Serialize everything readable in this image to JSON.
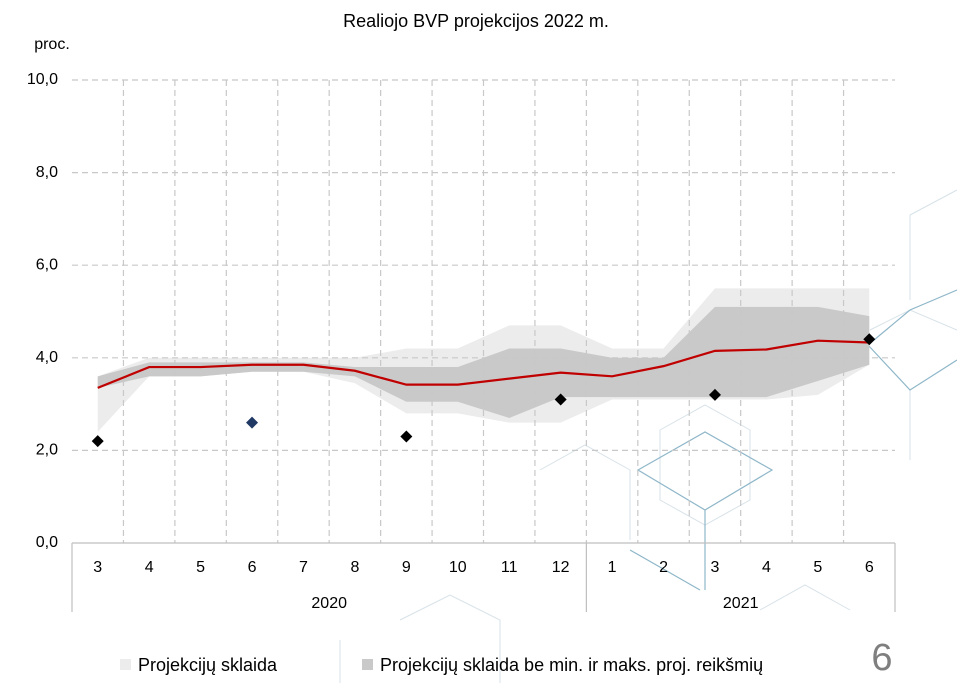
{
  "chart_data": {
    "type": "band-line",
    "title": "Realiojo BVP projekcijos 2022 m.",
    "y_label": "proc.",
    "page_number": "6",
    "categories": [
      "3",
      "4",
      "5",
      "6",
      "7",
      "8",
      "9",
      "10",
      "11",
      "12",
      "1",
      "2",
      "3",
      "4",
      "5",
      "6"
    ],
    "groups": [
      {
        "label": "2020",
        "count": 10
      },
      {
        "label": "2021",
        "count": 6
      }
    ],
    "ylim": [
      0,
      10
    ],
    "yticks": [
      {
        "value": 0,
        "label": "0,0"
      },
      {
        "value": 2,
        "label": "2,0"
      },
      {
        "value": 4,
        "label": "4,0"
      },
      {
        "value": 6,
        "label": "6,0"
      },
      {
        "value": 8,
        "label": "8,0"
      },
      {
        "value": 10,
        "label": "10,0"
      }
    ],
    "grid": true,
    "bands": [
      {
        "name": "Projekcijų sklaida",
        "color": "#ececec",
        "low": [
          2.4,
          3.6,
          3.6,
          3.7,
          3.7,
          3.45,
          2.8,
          2.8,
          2.6,
          2.6,
          3.1,
          3.1,
          3.1,
          3.1,
          3.2,
          3.85
        ],
        "high": [
          3.6,
          4.0,
          4.0,
          4.0,
          4.0,
          4.0,
          4.2,
          4.2,
          4.7,
          4.7,
          4.2,
          4.2,
          5.5,
          5.5,
          5.5,
          5.5
        ]
      },
      {
        "name": "Projekcijų sklaida be min. ir maks. proj. reikšmių",
        "color": "#c9c9c9",
        "low": [
          3.35,
          3.6,
          3.6,
          3.7,
          3.7,
          3.6,
          3.05,
          3.05,
          2.7,
          3.15,
          3.15,
          3.15,
          3.15,
          3.15,
          3.5,
          3.85
        ],
        "high": [
          3.6,
          3.9,
          3.9,
          3.9,
          3.9,
          3.8,
          3.8,
          3.8,
          4.2,
          4.2,
          4.0,
          4.0,
          5.1,
          5.1,
          5.1,
          4.9
        ]
      }
    ],
    "line": {
      "color": "#c00000",
      "values": [
        3.35,
        3.8,
        3.8,
        3.85,
        3.85,
        3.72,
        3.42,
        3.42,
        3.55,
        3.68,
        3.6,
        3.82,
        4.15,
        4.18,
        4.37,
        4.33
      ]
    },
    "points": {
      "values": [
        2.2,
        null,
        null,
        2.6,
        null,
        null,
        2.3,
        null,
        null,
        3.1,
        null,
        null,
        3.2,
        null,
        null,
        4.4
      ],
      "colors": [
        "#000000",
        null,
        null,
        "#1f3864",
        null,
        null,
        "#000000",
        null,
        null,
        "#000000",
        null,
        null,
        "#000000",
        null,
        null,
        "#000000"
      ]
    }
  }
}
